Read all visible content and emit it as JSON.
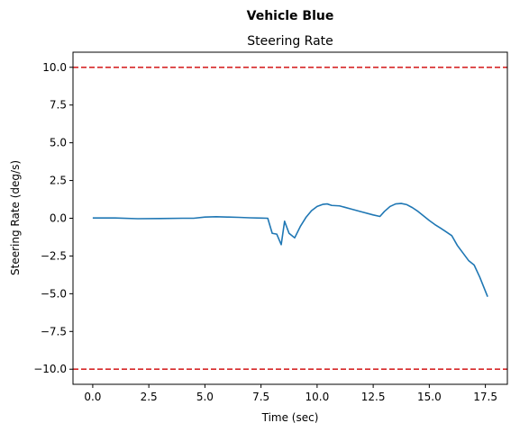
{
  "chart_data": {
    "type": "line",
    "suptitle": "Vehicle Blue",
    "title": "Steering Rate",
    "xlabel": "Time (sec)",
    "ylabel": "Steering Rate (deg/s)",
    "xlim": [
      -0.88,
      18.48
    ],
    "ylim": [
      -11,
      11
    ],
    "xticks": [
      0.0,
      2.5,
      5.0,
      7.5,
      10.0,
      12.5,
      15.0,
      17.5
    ],
    "xtick_labels": [
      "0.0",
      "2.5",
      "5.0",
      "7.5",
      "10.0",
      "12.5",
      "15.0",
      "17.5"
    ],
    "yticks": [
      10.0,
      7.5,
      5.0,
      2.5,
      0.0,
      -2.5,
      -5.0,
      -7.5,
      -10.0
    ],
    "ytick_labels": [
      "10.0",
      "7.5",
      "5.0",
      "2.5",
      "0.0",
      "−2.5",
      "−5.0",
      "−7.5",
      "−10.0"
    ],
    "grid": false,
    "series": [
      {
        "color": "#1f77b4",
        "x": [
          0.0,
          1.0,
          2.0,
          3.0,
          4.0,
          4.5,
          5.0,
          5.5,
          6.0,
          6.5,
          7.0,
          7.5,
          7.8,
          8.0,
          8.2,
          8.4,
          8.55,
          8.75,
          9.0,
          9.25,
          9.5,
          9.75,
          10.0,
          10.25,
          10.45,
          10.65,
          11.0,
          11.5,
          12.0,
          12.5,
          12.8,
          13.0,
          13.25,
          13.5,
          13.75,
          14.0,
          14.25,
          14.5,
          14.75,
          15.0,
          15.25,
          15.5,
          15.75,
          16.0,
          16.25,
          16.5,
          16.75,
          17.0,
          17.25,
          17.6
        ],
        "values": [
          0.02,
          0.02,
          -0.03,
          -0.02,
          0.0,
          0.0,
          0.08,
          0.1,
          0.08,
          0.06,
          0.03,
          0.01,
          0.0,
          -1.0,
          -1.05,
          -1.75,
          -0.2,
          -1.0,
          -1.3,
          -0.55,
          0.05,
          0.5,
          0.78,
          0.92,
          0.95,
          0.85,
          0.82,
          0.62,
          0.42,
          0.22,
          0.12,
          0.45,
          0.78,
          0.95,
          0.98,
          0.9,
          0.7,
          0.45,
          0.15,
          -0.15,
          -0.42,
          -0.65,
          -0.9,
          -1.15,
          -1.8,
          -2.3,
          -2.8,
          -3.1,
          -3.9,
          -5.2
        ]
      }
    ],
    "hlines": [
      {
        "y": 10.0,
        "color": "#d62728",
        "style": "dashed"
      },
      {
        "y": -10.0,
        "color": "#d62728",
        "style": "dashed"
      }
    ]
  }
}
